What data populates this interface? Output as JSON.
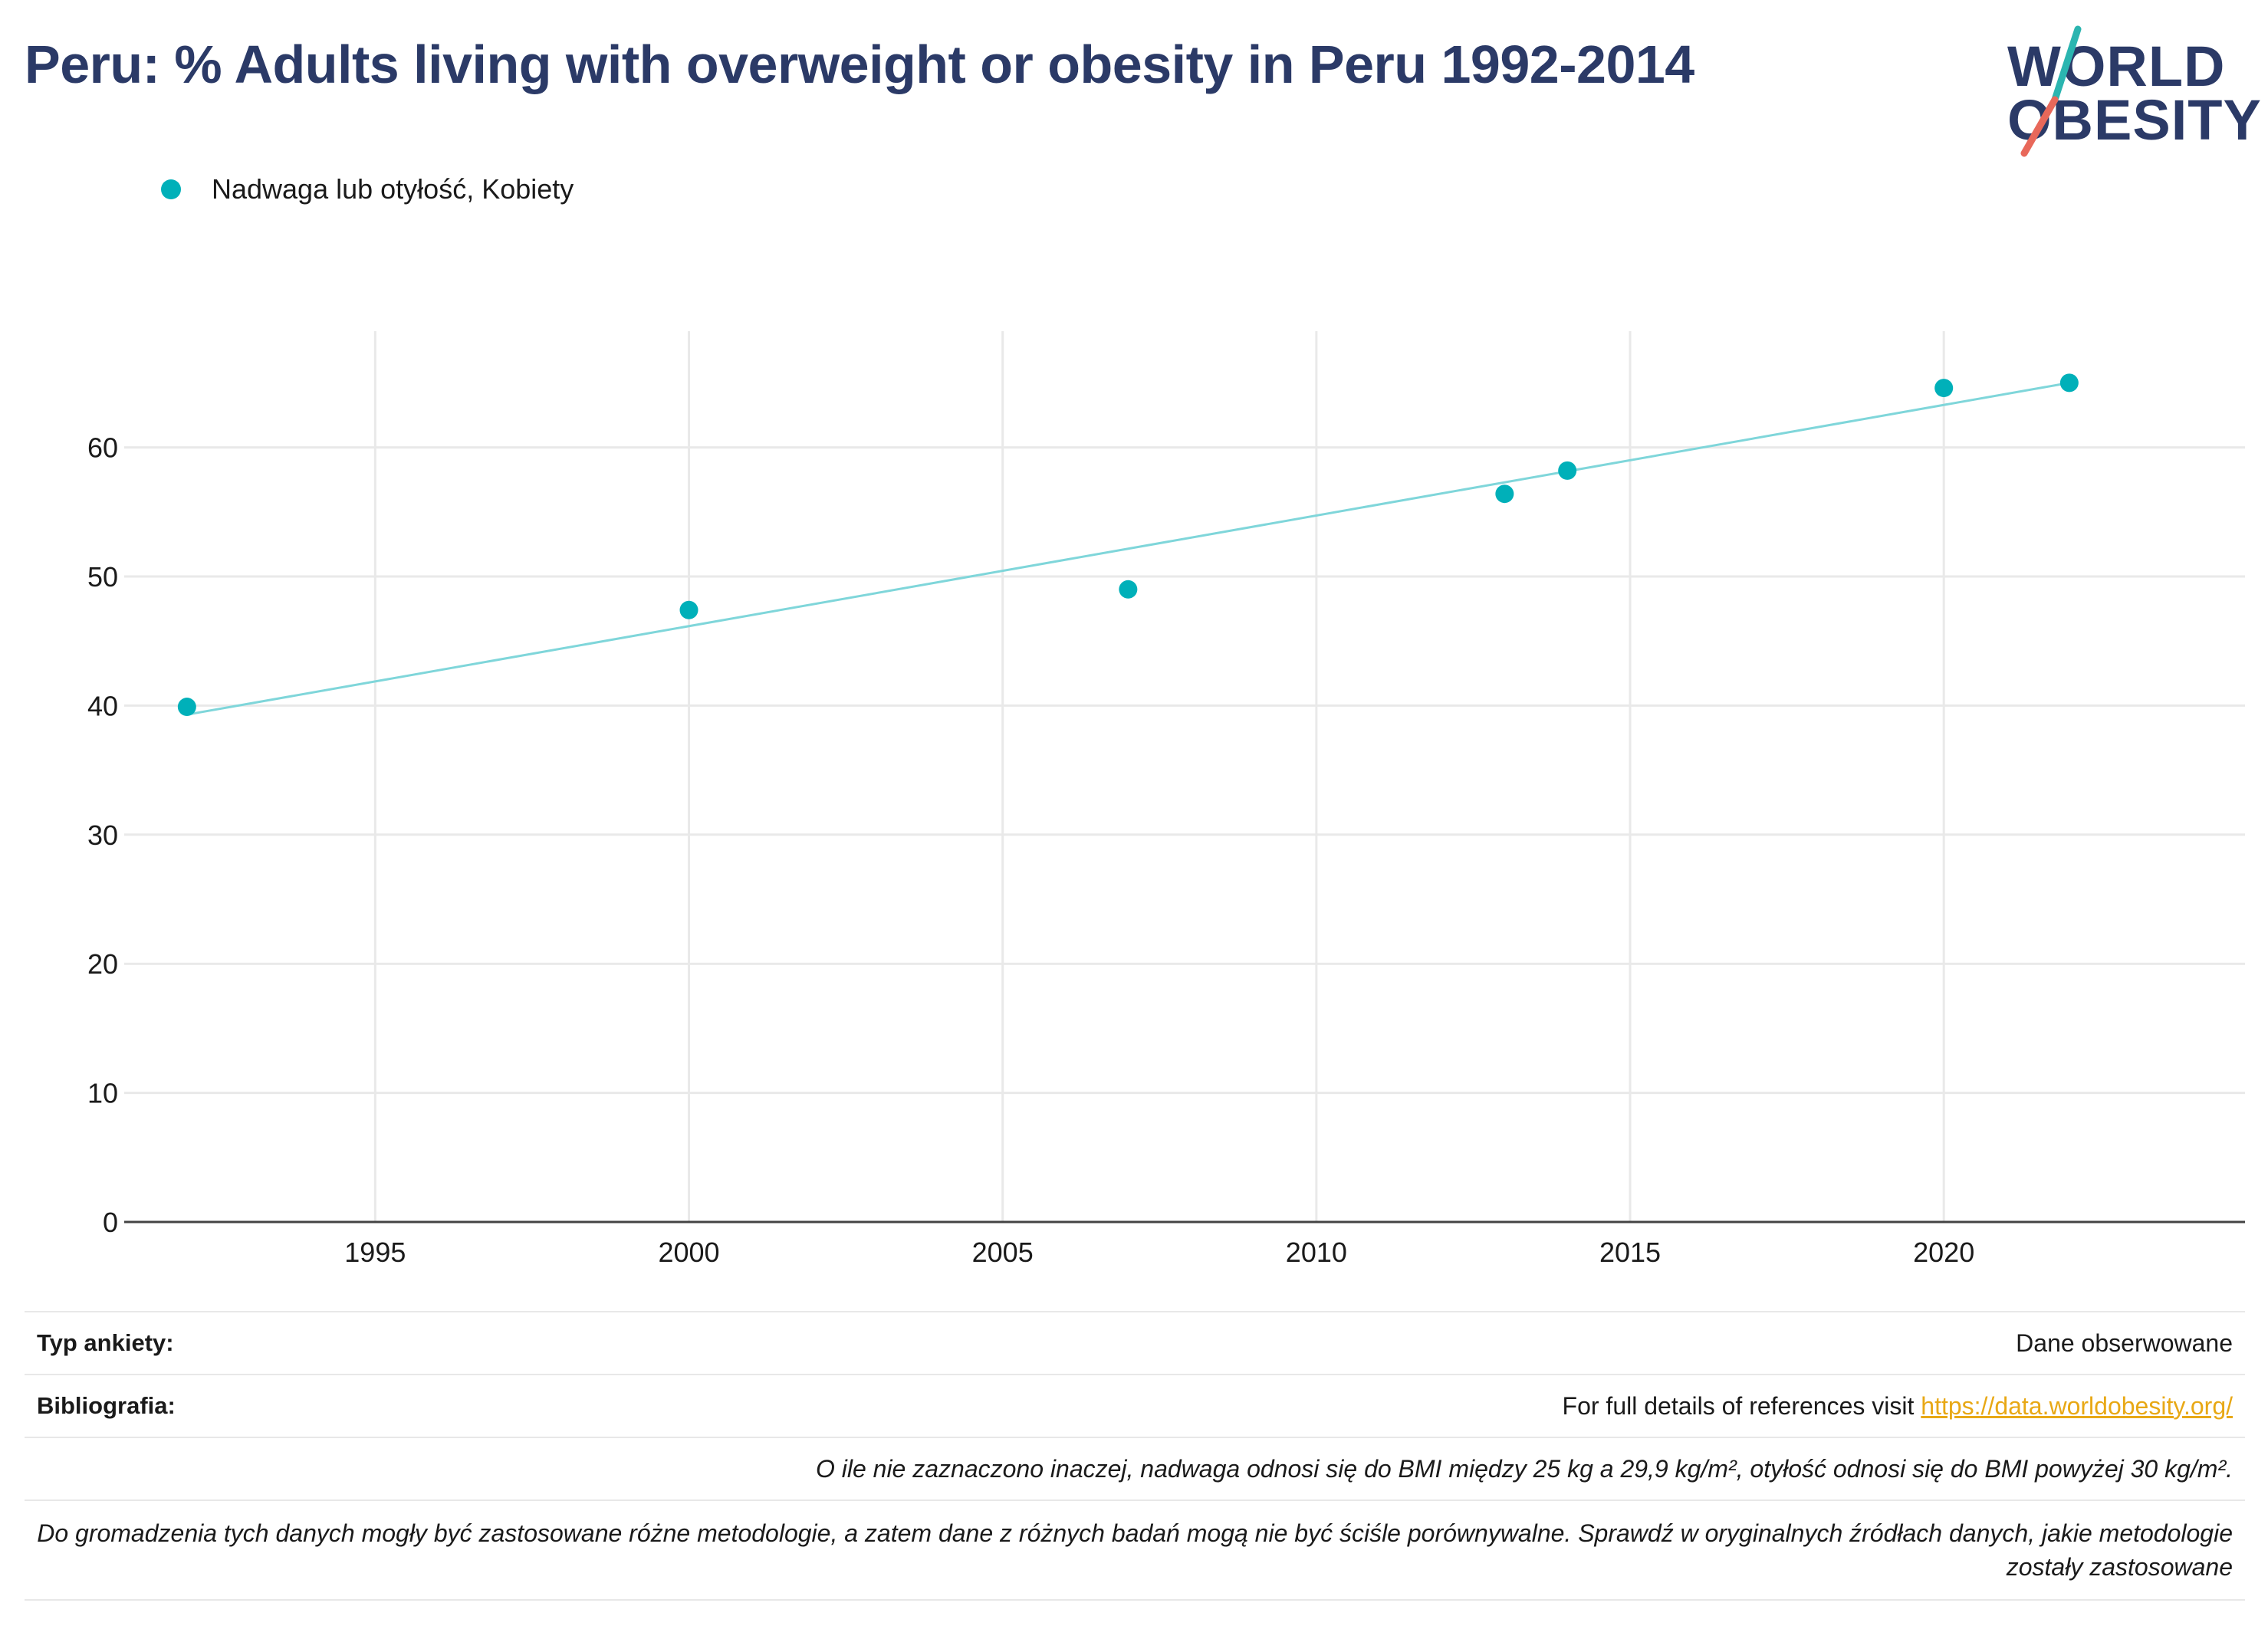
{
  "title": "Peru: % Adults living with overweight or obesity in Peru 1992-2014",
  "logo": {
    "line1": "WORLD",
    "line2": "OBESITY",
    "colors": {
      "navy": "#2b3a67",
      "teal": "#2bb5b0",
      "coral": "#e8685a"
    }
  },
  "legend": {
    "label": "Nadwaga lub otyłość, Kobiety",
    "color": "#00b0b9"
  },
  "chart_data": {
    "type": "scatter",
    "title": "",
    "xlabel": "",
    "ylabel": "",
    "xlim": [
      1991,
      2024.8
    ],
    "ylim": [
      0,
      69
    ],
    "x_ticks": [
      1995,
      2000,
      2005,
      2010,
      2015,
      2020
    ],
    "y_ticks": [
      0,
      10,
      20,
      30,
      40,
      50,
      60
    ],
    "grid": true,
    "legend_position": "top-left",
    "series": [
      {
        "name": "Nadwaga lub otyłość, Kobiety",
        "color": "#00b0b9",
        "x": [
          1992,
          2000,
          2007,
          2013,
          2014,
          2020,
          2022
        ],
        "y": [
          39.9,
          47.4,
          49.0,
          56.4,
          58.2,
          64.6,
          65.0
        ]
      }
    ],
    "trendline": {
      "color": "#7fd6da",
      "x": [
        1992,
        2022
      ],
      "y": [
        39.3,
        65.0
      ]
    }
  },
  "info": {
    "survey_type_key": "Typ ankiety:",
    "survey_type_value": "Dane obserwowane",
    "bibliography_key": "Bibliografia:",
    "bibliography_text": "For full details of references visit ",
    "bibliography_link": "https://data.worldobesity.org/",
    "note_bmi": "O ile nie zaznaczono inaczej, nadwaga odnosi się do BMI między 25 kg a 29,9 kg/m², otyłość odnosi się do BMI powyżej 30 kg/m².",
    "note_methods": "Do gromadzenia tych danych mogły być zastosowane różne metodologie, a zatem dane z różnych badań mogą nie być ściśle porównywalne. Sprawdź w oryginalnych źródłach danych, jakie metodologie zostały zastosowane"
  }
}
